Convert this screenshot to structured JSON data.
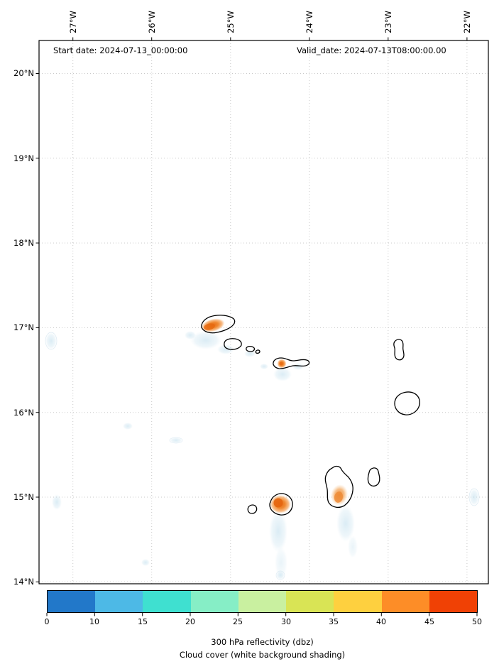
{
  "annotations": {
    "start_date": "Start date: 2024-07-13_00:00:00",
    "valid_date": "Valid_date: 2024-07-13T08:00:00.00"
  },
  "axes": {
    "top_ticks": [
      "27°W",
      "26°W",
      "25°W",
      "24°W",
      "23°W",
      "22°W"
    ],
    "left_ticks": [
      "20°N",
      "19°N",
      "18°N",
      "17°N",
      "16°N",
      "15°N",
      "14°N"
    ]
  },
  "colorbar": {
    "tick_labels": [
      "0",
      "10",
      "15",
      "20",
      "25",
      "30",
      "35",
      "40",
      "45",
      "50"
    ],
    "boundaries": [
      0,
      10,
      15,
      20,
      25,
      30,
      35,
      40,
      45,
      50
    ],
    "segment_colors": [
      "#2278c9",
      "#4db9e6",
      "#3fe0d0",
      "#86eec6",
      "#c9f0a0",
      "#d9e455",
      "#fed03f",
      "#fd8d27",
      "#f04105"
    ],
    "caption_line1": "300 hPa reflectivity (dbz)",
    "caption_line2": "Cloud cover (white background shading)"
  },
  "chart_data": {
    "type": "heatmap",
    "subtype": "geographic radar-reflectivity map with island coastlines over white cloud-cover shading",
    "annotations": [
      "Start date: 2024-07-13_00:00:00",
      "Valid_date: 2024-07-13T08:00:00.00"
    ],
    "x_axis": {
      "label_position": "top",
      "tick_labels_deg_w": [
        27,
        26,
        25,
        24,
        23,
        22
      ],
      "range_deg_w": [
        27.4,
        21.7
      ]
    },
    "y_axis": {
      "label_position": "left",
      "tick_labels_deg_n": [
        20,
        19,
        18,
        17,
        16,
        15,
        14
      ],
      "range_deg_n": [
        14.0,
        20.4
      ]
    },
    "grid": "dotted light gray at every degree",
    "colorbar": {
      "orientation": "horizontal",
      "label": "300 hPa reflectivity (dbz)",
      "units": "dbz",
      "boundaries": [
        0,
        10,
        15,
        20,
        25,
        30,
        35,
        40,
        45,
        50
      ],
      "colors": [
        "#2278c9",
        "#4db9e6",
        "#3fe0d0",
        "#86eec6",
        "#c9f0a0",
        "#d9e455",
        "#fed03f",
        "#fd8d27",
        "#f04105"
      ]
    },
    "background_note": "Cloud cover (white background shading)",
    "reflectivity_cells": [
      {
        "lon_deg_w": 25.2,
        "lat_deg_n": 17.05,
        "approx_max_dbz": 45
      },
      {
        "lon_deg_w": 24.35,
        "lat_deg_n": 16.55,
        "approx_max_dbz": 40
      },
      {
        "lon_deg_w": 24.35,
        "lat_deg_n": 14.9,
        "approx_max_dbz": 45
      },
      {
        "lon_deg_w": 23.6,
        "lat_deg_n": 15.0,
        "approx_max_dbz": 40
      }
    ]
  }
}
